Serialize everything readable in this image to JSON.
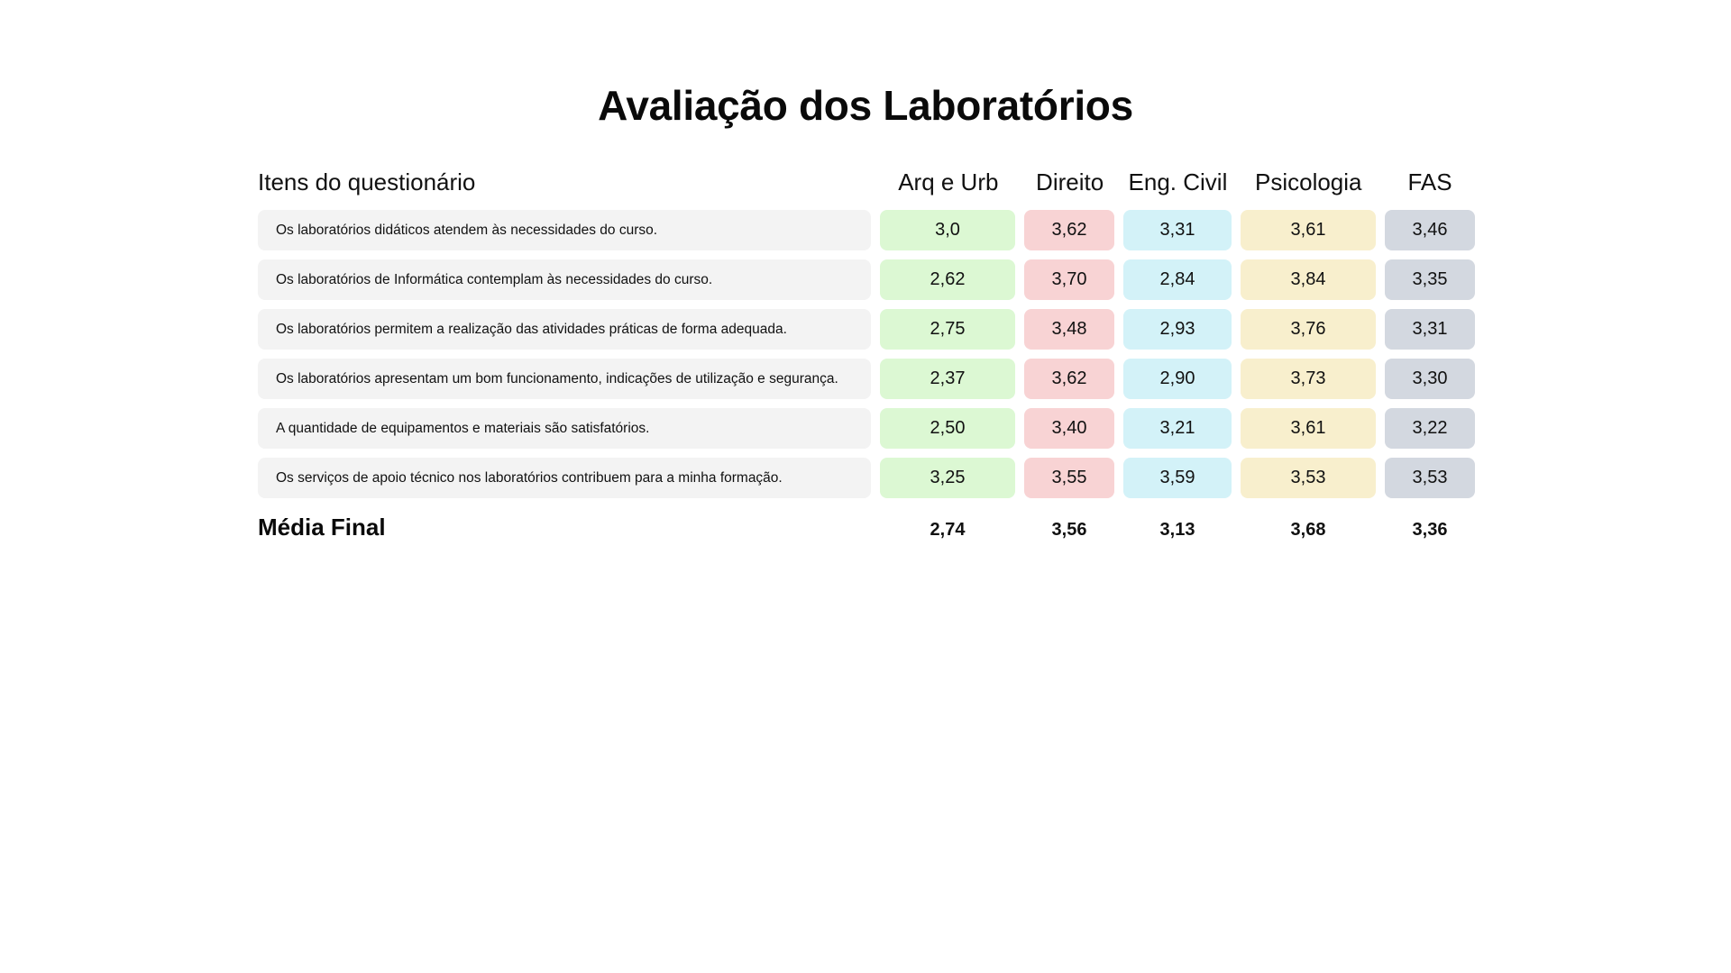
{
  "title": "Avaliação dos Laboratórios",
  "colors": {
    "arq_urb": "#dcf8d3",
    "direito": "#f8d3d4",
    "eng_civil": "#d3f2f8",
    "psicologia": "#f8efcd",
    "fas": "#d3d8e0",
    "item_bg": "#f3f3f3"
  },
  "header": {
    "items_label": "Itens do questionário",
    "columns": [
      "Arq e Urb",
      "Direito",
      "Eng. Civil",
      "Psicologia",
      "FAS"
    ]
  },
  "rows": [
    {
      "item": "Os laboratórios didáticos atendem às necessidades do curso.",
      "values": [
        "3,0",
        "3,62",
        "3,31",
        "3,61",
        "3,46"
      ]
    },
    {
      "item": "Os laboratórios de Informática contemplam às necessidades do curso.",
      "values": [
        "2,62",
        "3,70",
        "2,84",
        "3,84",
        "3,35"
      ]
    },
    {
      "item": "Os laboratórios permitem a realização das atividades práticas de forma adequada.",
      "values": [
        "2,75",
        "3,48",
        "2,93",
        "3,76",
        "3,31"
      ]
    },
    {
      "item": "Os laboratórios apresentam um bom funcionamento, indicações de utilização e segurança.",
      "values": [
        "2,37",
        "3,62",
        "2,90",
        "3,73",
        "3,30"
      ]
    },
    {
      "item": "A quantidade de equipamentos e materiais são satisfatórios.",
      "values": [
        "2,50",
        "3,40",
        "3,21",
        "3,61",
        "3,22"
      ]
    },
    {
      "item": "Os serviços de apoio técnico nos laboratórios contribuem para a minha formação.",
      "values": [
        "3,25",
        "3,55",
        "3,59",
        "3,53",
        "3,53"
      ]
    }
  ],
  "final": {
    "label": "Média Final",
    "values": [
      "2,74",
      "3,56",
      "3,13",
      "3,68",
      "3,36"
    ]
  }
}
